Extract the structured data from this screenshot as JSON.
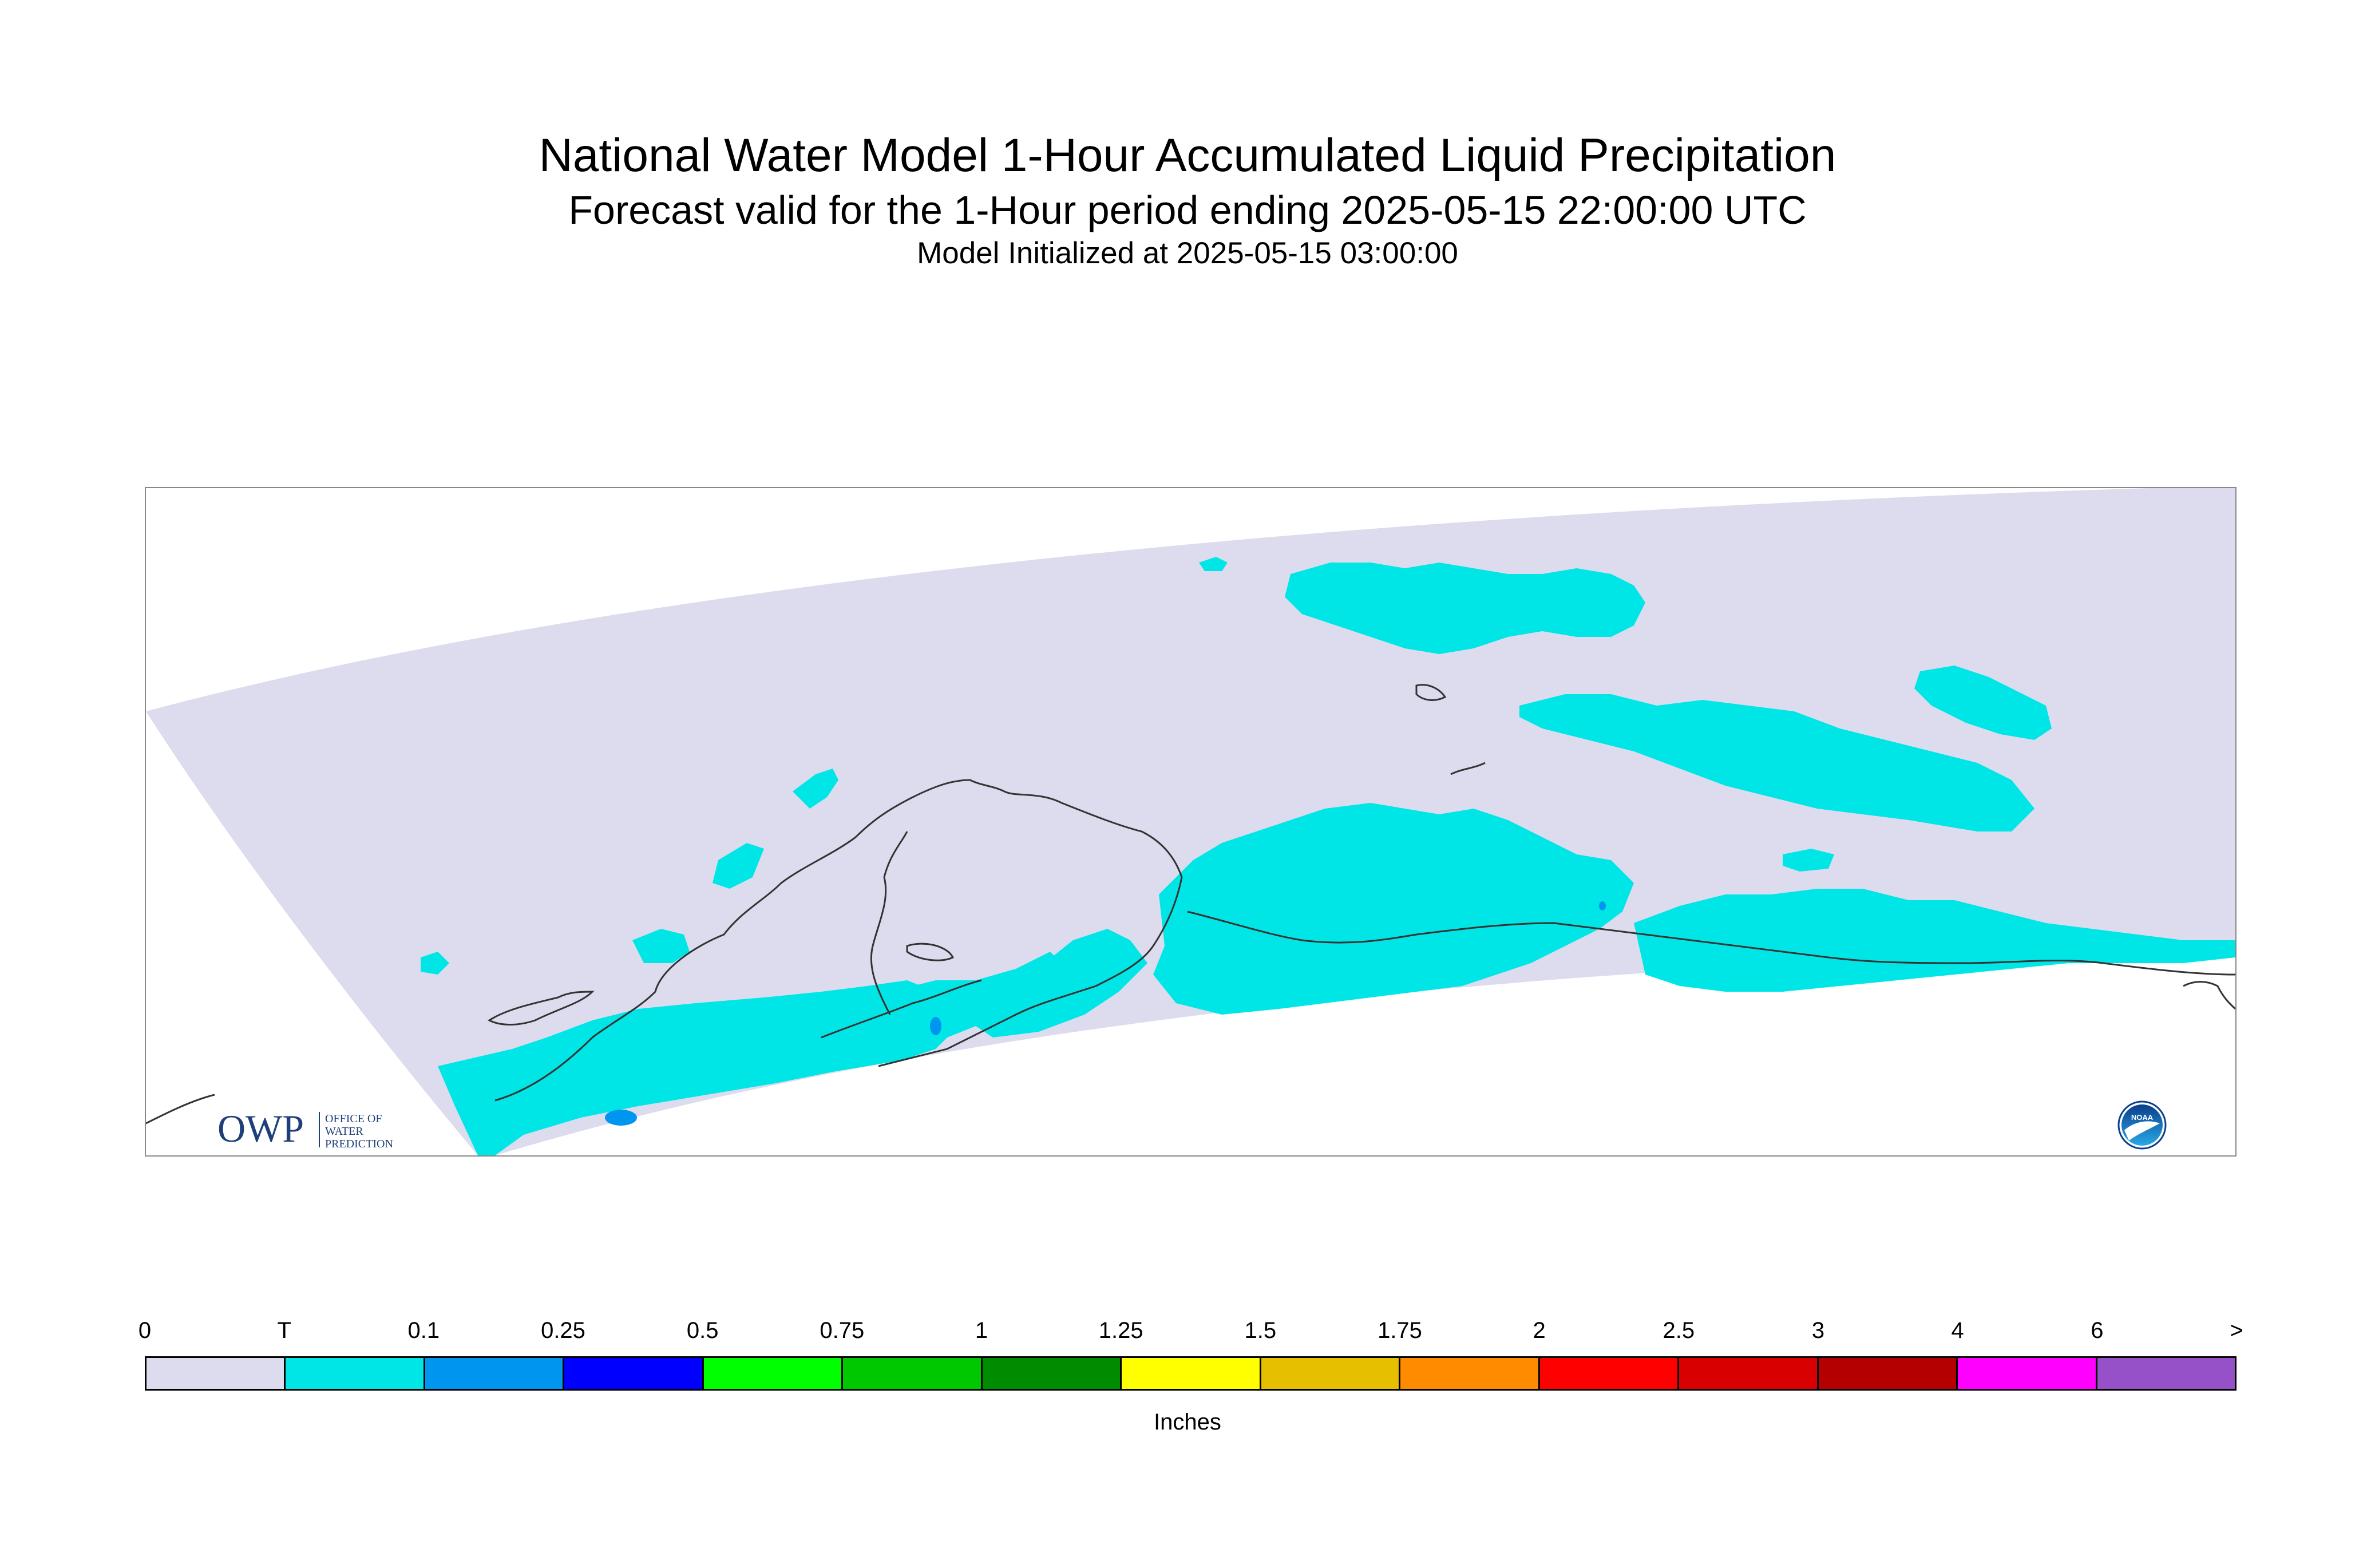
{
  "header": {
    "title": "National Water Model 1-Hour Accumulated Liquid Precipitation",
    "subtitle": "Forecast valid for the 1-Hour period ending 2025-05-15 22:00:00 UTC",
    "init_line": "Model Initialized at 2025-05-15 03:00:00"
  },
  "map": {
    "domain_fill_color": "#dcdcee",
    "background_color": "#ffffff",
    "coastline_color": "#333333",
    "frame_color": "#888888"
  },
  "logos": {
    "owp_mark": "OWP",
    "owp_line1": "OFFICE OF",
    "owp_line2": "WATER",
    "owp_line3": "PREDICTION",
    "owp_color": "#1f3f7a",
    "noaa_text": "NOAA",
    "noaa_icon": "noaa-logo-icon"
  },
  "legend": {
    "units": "Inches",
    "labels": [
      "0",
      "T",
      "0.1",
      "0.25",
      "0.5",
      "0.75",
      "1",
      "1.25",
      "1.5",
      "1.75",
      "2",
      "2.5",
      "3",
      "4",
      "6",
      ">"
    ],
    "colors": [
      "#dcdcee",
      "#00e6e6",
      "#0096f0",
      "#0000ff",
      "#00ff00",
      "#00c800",
      "#008c00",
      "#ffff00",
      "#e6c000",
      "#ff8c00",
      "#ff0000",
      "#d80000",
      "#b40000",
      "#ff00ff",
      "#9650c8"
    ]
  }
}
